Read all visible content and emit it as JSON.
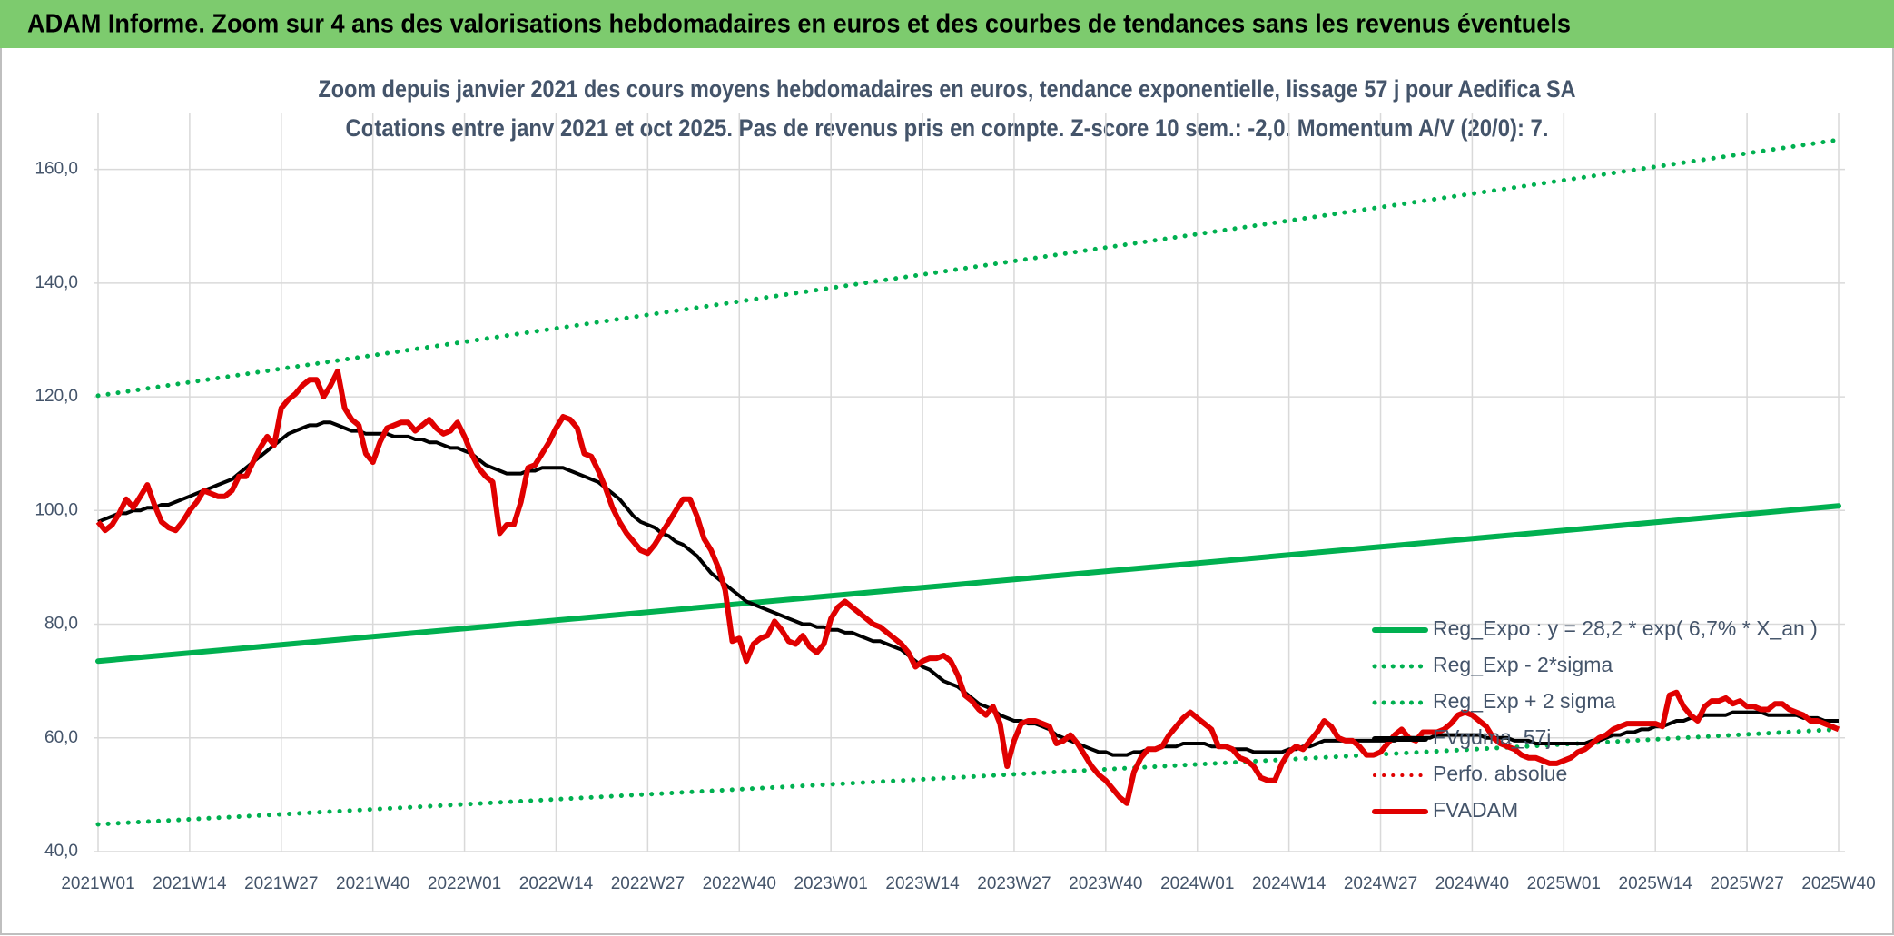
{
  "header": {
    "title": "ADAM Informe. Zoom sur 4 ans des valorisations hebdomadaires en euros et des courbes de tendances sans les revenus éventuels"
  },
  "chart_data": {
    "type": "line",
    "title": "Zoom depuis janvier 2021 des cours moyens hebdomadaires en euros, tendance exponentielle, lissage 57 j pour Aedifica SA",
    "subtitle": "Cotations entre janv 2021 et oct 2025. Pas de revenus pris en compte. Z-score 10 sem.: -2,0. Momentum A/V (20/0): 7.",
    "grid": true,
    "ylim": [
      40,
      170
    ],
    "yticks": [
      {
        "value": 40,
        "label": "40,0"
      },
      {
        "value": 60,
        "label": "60,0"
      },
      {
        "value": 80,
        "label": "80,0"
      },
      {
        "value": 100,
        "label": "100,0"
      },
      {
        "value": 120,
        "label": "120,0"
      },
      {
        "value": 140,
        "label": "140,0"
      },
      {
        "value": 160,
        "label": "160,0"
      }
    ],
    "categories": [
      "2021W01",
      null,
      null,
      null,
      null,
      null,
      null,
      null,
      null,
      null,
      null,
      null,
      null,
      "2021W14",
      null,
      null,
      null,
      null,
      null,
      null,
      null,
      null,
      null,
      null,
      null,
      null,
      "2021W27",
      null,
      null,
      null,
      null,
      null,
      null,
      null,
      null,
      null,
      null,
      null,
      null,
      "2021W40",
      null,
      null,
      null,
      null,
      null,
      null,
      null,
      null,
      null,
      null,
      null,
      null,
      "2022W01",
      null,
      null,
      null,
      null,
      null,
      null,
      null,
      null,
      null,
      null,
      null,
      null,
      "2022W14",
      null,
      null,
      null,
      null,
      null,
      null,
      null,
      null,
      null,
      null,
      null,
      null,
      "2022W27",
      null,
      null,
      null,
      null,
      null,
      null,
      null,
      null,
      null,
      null,
      null,
      null,
      "2022W40",
      null,
      null,
      null,
      null,
      null,
      null,
      null,
      null,
      null,
      null,
      null,
      null,
      "2023W01",
      null,
      null,
      null,
      null,
      null,
      null,
      null,
      null,
      null,
      null,
      null,
      null,
      "2023W14",
      null,
      null,
      null,
      null,
      null,
      null,
      null,
      null,
      null,
      null,
      null,
      null,
      "2023W27",
      null,
      null,
      null,
      null,
      null,
      null,
      null,
      null,
      null,
      null,
      null,
      null,
      "2023W40",
      null,
      null,
      null,
      null,
      null,
      null,
      null,
      null,
      null,
      null,
      null,
      null,
      "2024W01",
      null,
      null,
      null,
      null,
      null,
      null,
      null,
      null,
      null,
      null,
      null,
      null,
      "2024W14",
      null,
      null,
      null,
      null,
      null,
      null,
      null,
      null,
      null,
      null,
      null,
      null,
      "2024W27",
      null,
      null,
      null,
      null,
      null,
      null,
      null,
      null,
      null,
      null,
      null,
      null,
      "2024W40",
      null,
      null,
      null,
      null,
      null,
      null,
      null,
      null,
      null,
      null,
      null,
      null,
      "2025W01",
      null,
      null,
      null,
      null,
      null,
      null,
      null,
      null,
      null,
      null,
      null,
      null,
      "2025W14",
      null,
      null,
      null,
      null,
      null,
      null,
      null,
      null,
      null,
      null,
      null,
      null,
      "2025W27",
      null,
      null,
      null,
      null,
      null,
      null,
      null,
      null,
      null,
      null,
      null,
      null,
      "2025W40"
    ],
    "trends": [
      {
        "name": "Reg_Expo : y = 28,2 * exp( 6,7% * X_an )",
        "color": "#00b050",
        "dotted": false,
        "start": 73.5,
        "end": 100.8
      },
      {
        "name": "Reg_Exp - 2*sigma",
        "color": "#00b050",
        "dotted": true,
        "start": 44.8,
        "end": 61.5
      },
      {
        "name": "Reg_Exp + 2 sigma",
        "color": "#00b050",
        "dotted": true,
        "start": 120.2,
        "end": 165.2
      }
    ],
    "legend_only": [
      {
        "name": "Perfo. absolue",
        "color": "#e00000",
        "dotted": true
      }
    ],
    "series": [
      {
        "name": "FVgdma_57j",
        "color": "#000000",
        "values": [
          98,
          98.5,
          99,
          99.5,
          99.5,
          100,
          100,
          100.5,
          100.5,
          101,
          101,
          101.5,
          102,
          102.5,
          103,
          103.5,
          104,
          104.5,
          105,
          105.5,
          106.5,
          107.5,
          108.5,
          109.5,
          110.5,
          111.5,
          112.5,
          113.5,
          114,
          114.5,
          115,
          115,
          115.5,
          115.5,
          115,
          114.5,
          114,
          114,
          113.5,
          113.5,
          113.5,
          113.5,
          113,
          113,
          113,
          112.5,
          112.5,
          112,
          112,
          111.5,
          111,
          111,
          110.5,
          110,
          109,
          108,
          107.5,
          107,
          106.5,
          106.5,
          106.5,
          107,
          107,
          107.5,
          107.5,
          107.5,
          107.5,
          107,
          106.5,
          106,
          105.5,
          105,
          104,
          103,
          102,
          100.5,
          99,
          98,
          97.5,
          97,
          96,
          95.5,
          94.5,
          94,
          93,
          92,
          90.5,
          89,
          88,
          87,
          86,
          85,
          84,
          83.5,
          83,
          82.5,
          82,
          81.5,
          81,
          80.5,
          80,
          80,
          79.5,
          79.5,
          79,
          79,
          78.5,
          78.5,
          78,
          77.5,
          77,
          77,
          76.5,
          76,
          75.5,
          74.5,
          73.5,
          72.5,
          72,
          71,
          70,
          69.5,
          69,
          68,
          67,
          66,
          65.5,
          65,
          64,
          63.5,
          63,
          63,
          62.5,
          62.5,
          62,
          61.5,
          60.5,
          60,
          59.5,
          59,
          58.5,
          58,
          57.5,
          57.5,
          57,
          57,
          57,
          57.5,
          57.5,
          58,
          58,
          58.5,
          58.5,
          58.5,
          59,
          59,
          59,
          59,
          58.5,
          58.5,
          58.5,
          58,
          58,
          58,
          57.5,
          57.5,
          57.5,
          57.5,
          57.5,
          58,
          58,
          58.5,
          58.5,
          59,
          59.5,
          59.5,
          59.5,
          59.5,
          59.5,
          59.5,
          59.5,
          59.5,
          59.5,
          59.5,
          59.5,
          60,
          60,
          60,
          60,
          60,
          60.5,
          60.5,
          60.5,
          60.5,
          60.5,
          60.5,
          60.5,
          60,
          60,
          60,
          60,
          59.5,
          59.5,
          59.5,
          59,
          59,
          59,
          59,
          59,
          59,
          59,
          59,
          59.5,
          59.5,
          60,
          60.5,
          60.5,
          61,
          61,
          61.5,
          61.5,
          62,
          62,
          62.5,
          63,
          63,
          63.5,
          63.5,
          64,
          64,
          64,
          64,
          64.5,
          64.5,
          64.5,
          64.5,
          64.5,
          64,
          64,
          64,
          64,
          64,
          63.5,
          63.5,
          63.5,
          63,
          63,
          63
        ]
      },
      {
        "name": "FVADAM",
        "color": "#e00000",
        "values": [
          98,
          96.5,
          97.5,
          99.5,
          102,
          100.5,
          102.5,
          104.5,
          101,
          98,
          97,
          96.5,
          98,
          100,
          101.5,
          103.5,
          103,
          102.5,
          102.5,
          103.5,
          106,
          106,
          108.5,
          111,
          113,
          111.5,
          118,
          119.5,
          120.5,
          122,
          123,
          123,
          120,
          122,
          124.5,
          118,
          116,
          115,
          110,
          108.5,
          112,
          114.5,
          115,
          115.5,
          115.5,
          114,
          115,
          116,
          114.5,
          113.5,
          114,
          115.5,
          113,
          110,
          107.5,
          106,
          105,
          96,
          97.5,
          97.5,
          101.5,
          107.5,
          108,
          110,
          112,
          114.5,
          116.5,
          116,
          114.5,
          110,
          109.5,
          107,
          104,
          100.5,
          98,
          96,
          94.5,
          93,
          92.5,
          94,
          96,
          98,
          100,
          102,
          102,
          99,
          95,
          93,
          90,
          86,
          77,
          77.5,
          73.5,
          76.5,
          77.5,
          78,
          80.5,
          79,
          77,
          76.5,
          78,
          76,
          75,
          76.5,
          81,
          83,
          84,
          83,
          82,
          81,
          80,
          79.5,
          78.5,
          77.5,
          76.5,
          75,
          72.5,
          73.5,
          74,
          74,
          74.5,
          73.5,
          71,
          67.5,
          66.5,
          65,
          64,
          65.5,
          62.5,
          55,
          59.5,
          62.5,
          63,
          63,
          62.5,
          62,
          59,
          59.5,
          60.5,
          59,
          57,
          55,
          53.5,
          52.5,
          51,
          49.5,
          48.5,
          54,
          56.5,
          58,
          58,
          58.5,
          60.5,
          62,
          63.5,
          64.5,
          63.5,
          62.5,
          61.5,
          58.5,
          58.5,
          58,
          56.5,
          56,
          55,
          53,
          52.5,
          52.5,
          55.5,
          57.5,
          58.5,
          58,
          59.5,
          61,
          63,
          62,
          60,
          59.5,
          59.5,
          58.5,
          57,
          57,
          57.5,
          59,
          60.5,
          61.5,
          60,
          59.5,
          61,
          61,
          61,
          61.5,
          62.5,
          64,
          64.5,
          64,
          63,
          62,
          60,
          59,
          58.5,
          58,
          57,
          56.5,
          56.5,
          56,
          55.5,
          55.5,
          56,
          56.5,
          57.5,
          58,
          59,
          60,
          60.5,
          61.5,
          62,
          62.5,
          62.5,
          62.5,
          62.5,
          62.5,
          62,
          67.5,
          68,
          65.5,
          64,
          63,
          65.5,
          66.5,
          66.5,
          67,
          66,
          66.5,
          65.5,
          65.5,
          65,
          65,
          66,
          66,
          65,
          64.5,
          64,
          63,
          63,
          62.5,
          62,
          61.5
        ]
      }
    ]
  }
}
